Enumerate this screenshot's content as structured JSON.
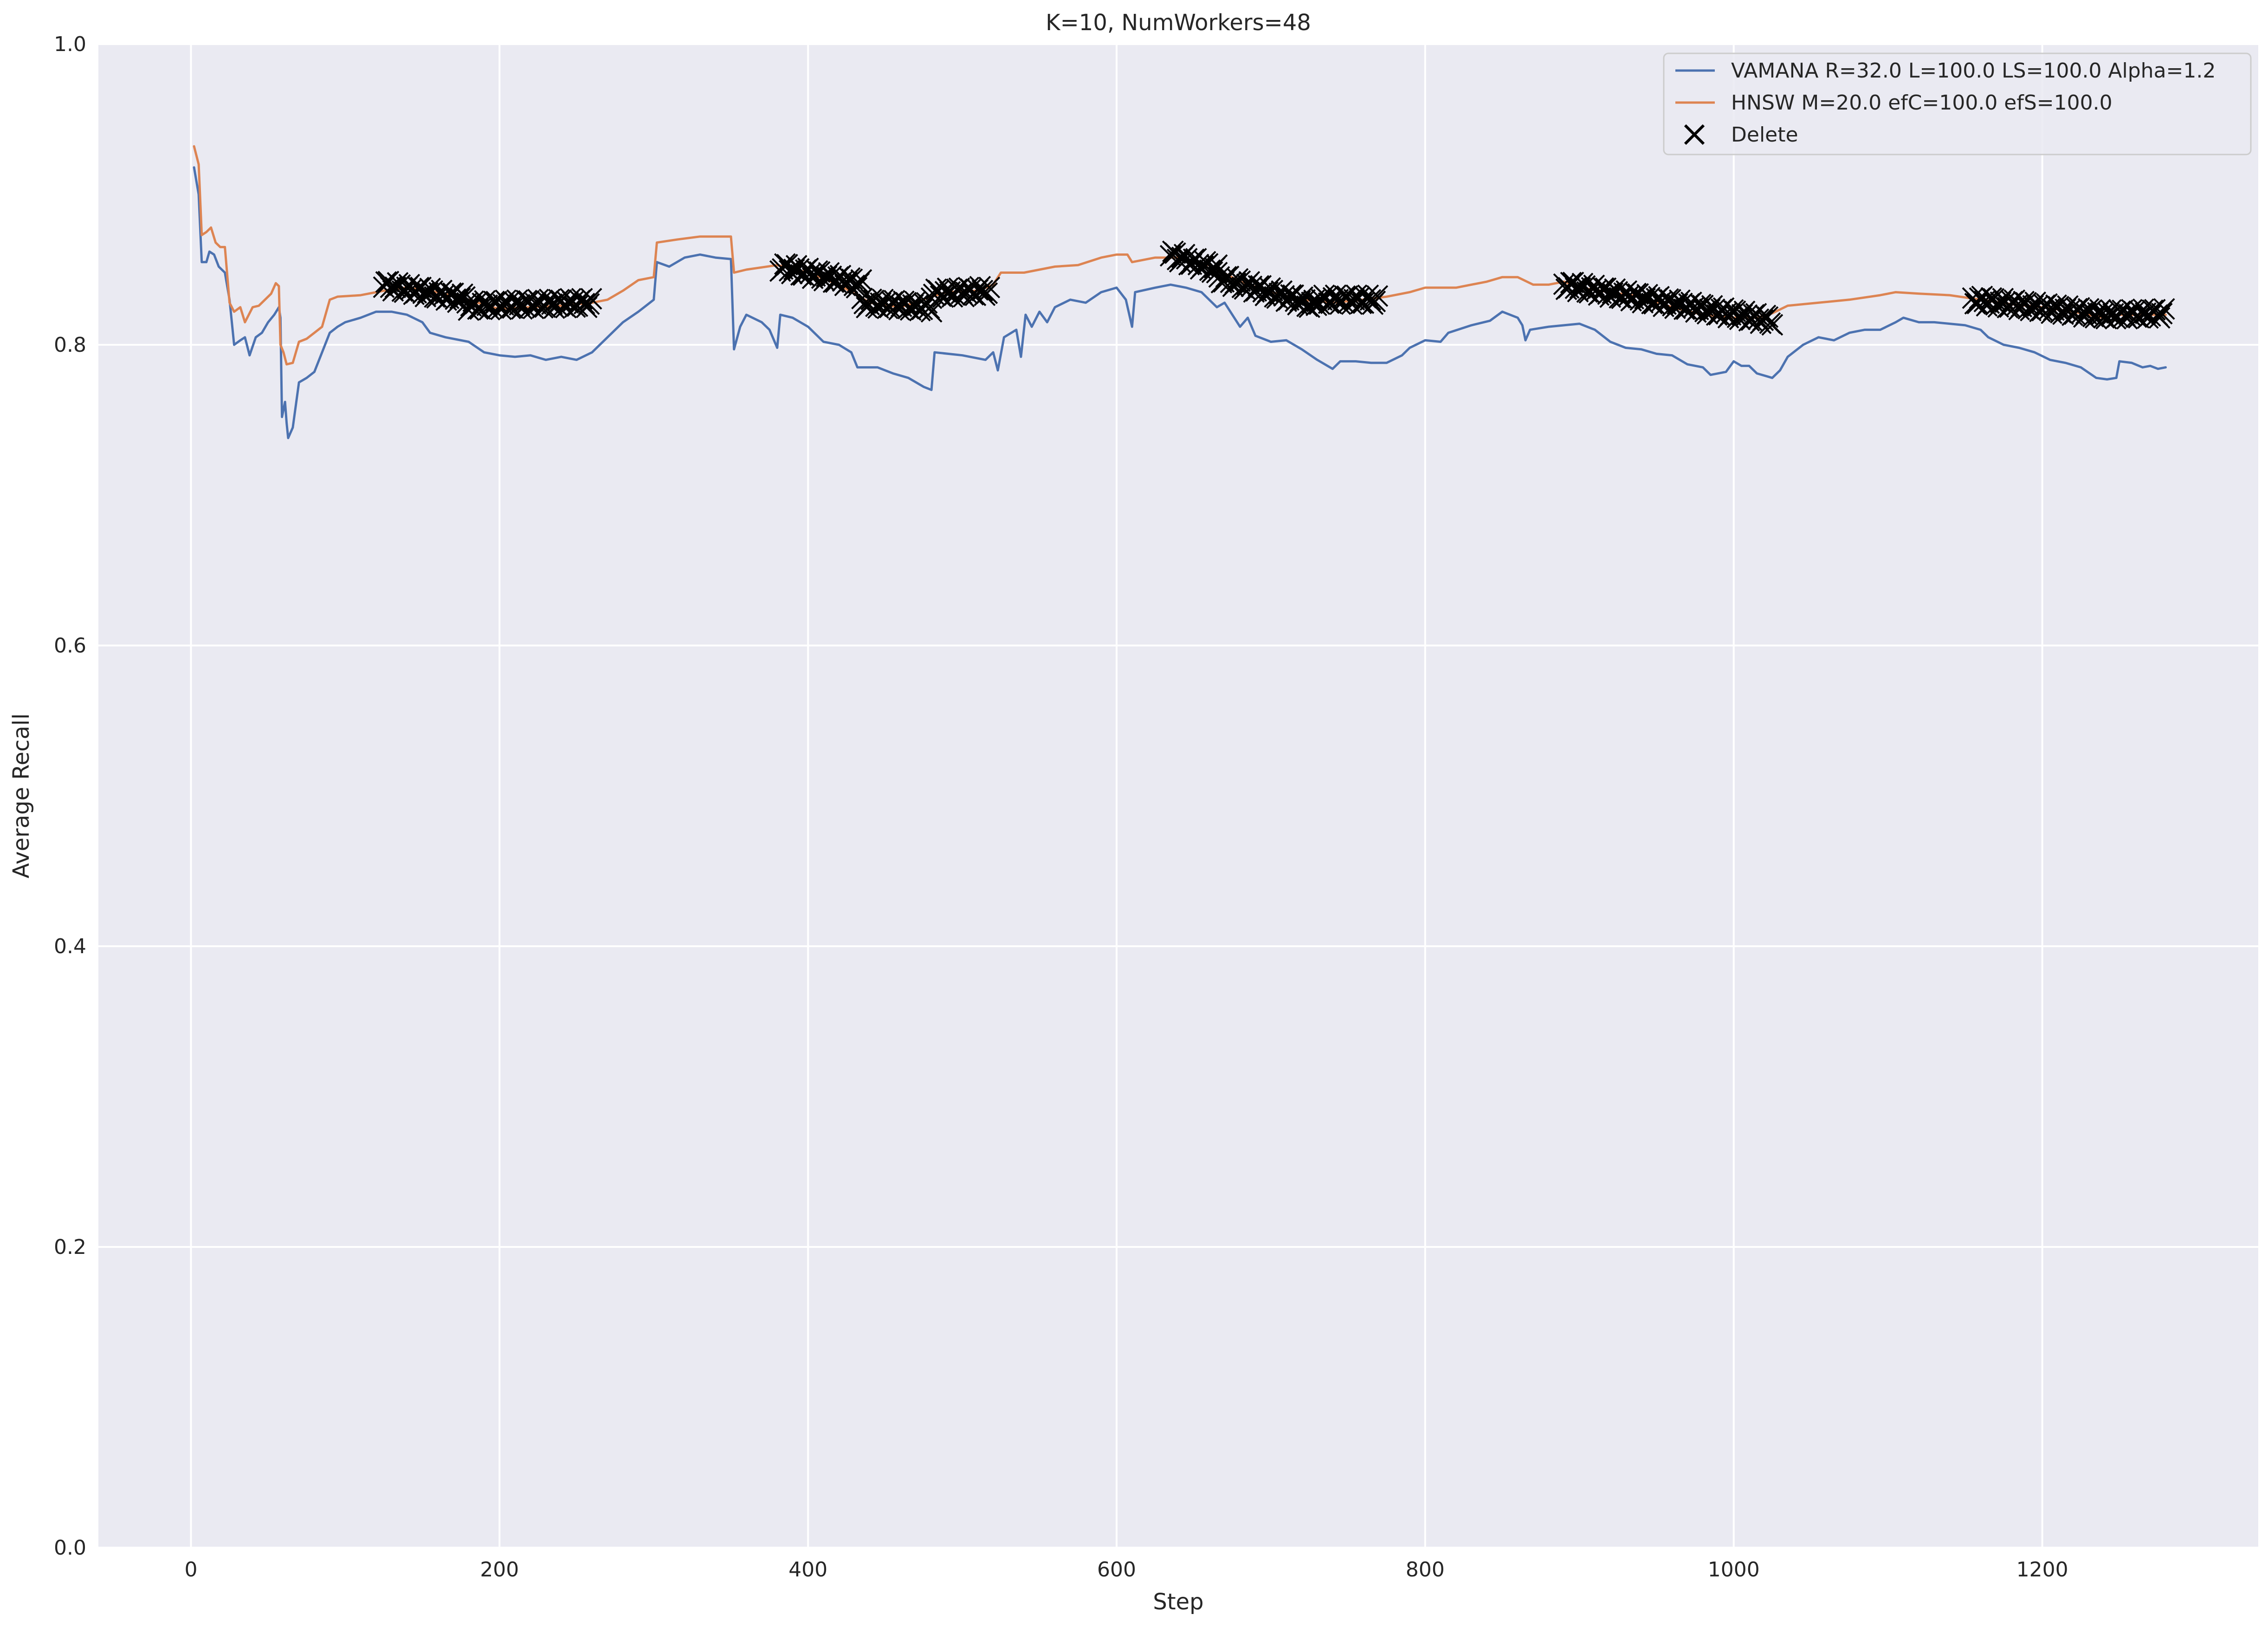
{
  "chart_data": {
    "type": "line",
    "title": "K=10, NumWorkers=48",
    "xlabel": "Step",
    "ylabel": "Average Recall",
    "xlim": [
      -60,
      1340
    ],
    "ylim": [
      0.0,
      1.0
    ],
    "xticks": [
      0,
      200,
      400,
      600,
      800,
      1000,
      1200
    ],
    "xtick_labels": [
      "0",
      "200",
      "400",
      "600",
      "800",
      "1000",
      "1200"
    ],
    "yticks": [
      0.0,
      0.2,
      0.4,
      0.6,
      0.8,
      1.0
    ],
    "ytick_labels": [
      "0.0",
      "0.2",
      "0.4",
      "0.6",
      "0.8",
      "1.0"
    ],
    "grid": true,
    "background": "#eaeaf2",
    "legend_position": "top-right",
    "legend": [
      {
        "label": "VAMANA R=32.0 L=100.0 LS=100.0 Alpha=1.2",
        "kind": "line",
        "color": "#4c72b0"
      },
      {
        "label": "HNSW M=20.0 efC=100.0 efS=100.0",
        "kind": "line",
        "color": "#dd8452"
      },
      {
        "label": "Delete",
        "kind": "marker",
        "color": "#000000"
      }
    ],
    "series": [
      {
        "name": "VAMANA R=32.0 L=100.0 LS=100.0 Alpha=1.2",
        "color": "#4c72b0",
        "points": [
          [
            2,
            0.918
          ],
          [
            5,
            0.9
          ],
          [
            7,
            0.855
          ],
          [
            10,
            0.855
          ],
          [
            12,
            0.862
          ],
          [
            15,
            0.86
          ],
          [
            18,
            0.852
          ],
          [
            22,
            0.848
          ],
          [
            25,
            0.83
          ],
          [
            28,
            0.8
          ],
          [
            32,
            0.803
          ],
          [
            35,
            0.805
          ],
          [
            38,
            0.793
          ],
          [
            42,
            0.805
          ],
          [
            46,
            0.808
          ],
          [
            50,
            0.815
          ],
          [
            54,
            0.82
          ],
          [
            57,
            0.825
          ],
          [
            58,
            0.818
          ],
          [
            59,
            0.752
          ],
          [
            61,
            0.762
          ],
          [
            62,
            0.748
          ],
          [
            63,
            0.738
          ],
          [
            66,
            0.745
          ],
          [
            70,
            0.775
          ],
          [
            75,
            0.778
          ],
          [
            80,
            0.782
          ],
          [
            85,
            0.795
          ],
          [
            90,
            0.808
          ],
          [
            95,
            0.812
          ],
          [
            100,
            0.815
          ],
          [
            110,
            0.818
          ],
          [
            120,
            0.822
          ],
          [
            130,
            0.822
          ],
          [
            140,
            0.82
          ],
          [
            150,
            0.815
          ],
          [
            155,
            0.808
          ],
          [
            165,
            0.805
          ],
          [
            180,
            0.802
          ],
          [
            190,
            0.795
          ],
          [
            200,
            0.793
          ],
          [
            210,
            0.792
          ],
          [
            220,
            0.793
          ],
          [
            230,
            0.79
          ],
          [
            240,
            0.792
          ],
          [
            250,
            0.79
          ],
          [
            260,
            0.795
          ],
          [
            270,
            0.805
          ],
          [
            280,
            0.815
          ],
          [
            290,
            0.822
          ],
          [
            300,
            0.83
          ],
          [
            302,
            0.855
          ],
          [
            310,
            0.852
          ],
          [
            320,
            0.858
          ],
          [
            330,
            0.86
          ],
          [
            340,
            0.858
          ],
          [
            350,
            0.857
          ],
          [
            352,
            0.797
          ],
          [
            356,
            0.812
          ],
          [
            360,
            0.82
          ],
          [
            370,
            0.815
          ],
          [
            375,
            0.81
          ],
          [
            380,
            0.798
          ],
          [
            382,
            0.82
          ],
          [
            390,
            0.818
          ],
          [
            400,
            0.812
          ],
          [
            410,
            0.802
          ],
          [
            420,
            0.8
          ],
          [
            428,
            0.795
          ],
          [
            432,
            0.785
          ],
          [
            445,
            0.785
          ],
          [
            455,
            0.781
          ],
          [
            465,
            0.778
          ],
          [
            475,
            0.772
          ],
          [
            480,
            0.77
          ],
          [
            482,
            0.795
          ],
          [
            500,
            0.793
          ],
          [
            515,
            0.79
          ],
          [
            520,
            0.795
          ],
          [
            523,
            0.783
          ],
          [
            527,
            0.805
          ],
          [
            535,
            0.81
          ],
          [
            538,
            0.792
          ],
          [
            541,
            0.82
          ],
          [
            545,
            0.812
          ],
          [
            550,
            0.822
          ],
          [
            555,
            0.815
          ],
          [
            560,
            0.825
          ],
          [
            570,
            0.83
          ],
          [
            580,
            0.828
          ],
          [
            590,
            0.835
          ],
          [
            600,
            0.838
          ],
          [
            606,
            0.83
          ],
          [
            610,
            0.812
          ],
          [
            612,
            0.835
          ],
          [
            625,
            0.838
          ],
          [
            635,
            0.84
          ],
          [
            645,
            0.838
          ],
          [
            655,
            0.835
          ],
          [
            665,
            0.825
          ],
          [
            670,
            0.828
          ],
          [
            680,
            0.812
          ],
          [
            685,
            0.818
          ],
          [
            690,
            0.806
          ],
          [
            700,
            0.802
          ],
          [
            710,
            0.803
          ],
          [
            720,
            0.797
          ],
          [
            730,
            0.79
          ],
          [
            740,
            0.784
          ],
          [
            745,
            0.789
          ],
          [
            755,
            0.789
          ],
          [
            765,
            0.788
          ],
          [
            775,
            0.788
          ],
          [
            785,
            0.793
          ],
          [
            790,
            0.798
          ],
          [
            800,
            0.803
          ],
          [
            810,
            0.802
          ],
          [
            815,
            0.808
          ],
          [
            830,
            0.813
          ],
          [
            842,
            0.816
          ],
          [
            850,
            0.822
          ],
          [
            860,
            0.818
          ],
          [
            863,
            0.813
          ],
          [
            865,
            0.803
          ],
          [
            868,
            0.81
          ],
          [
            880,
            0.812
          ],
          [
            890,
            0.813
          ],
          [
            900,
            0.814
          ],
          [
            910,
            0.81
          ],
          [
            920,
            0.802
          ],
          [
            930,
            0.798
          ],
          [
            940,
            0.797
          ],
          [
            950,
            0.794
          ],
          [
            960,
            0.793
          ],
          [
            970,
            0.787
          ],
          [
            980,
            0.785
          ],
          [
            985,
            0.78
          ],
          [
            995,
            0.782
          ],
          [
            1000,
            0.789
          ],
          [
            1005,
            0.786
          ],
          [
            1010,
            0.786
          ],
          [
            1015,
            0.781
          ],
          [
            1025,
            0.778
          ],
          [
            1030,
            0.783
          ],
          [
            1035,
            0.792
          ],
          [
            1045,
            0.8
          ],
          [
            1055,
            0.805
          ],
          [
            1065,
            0.803
          ],
          [
            1075,
            0.808
          ],
          [
            1085,
            0.81
          ],
          [
            1095,
            0.81
          ],
          [
            1105,
            0.815
          ],
          [
            1110,
            0.818
          ],
          [
            1120,
            0.815
          ],
          [
            1130,
            0.815
          ],
          [
            1140,
            0.814
          ],
          [
            1150,
            0.813
          ],
          [
            1160,
            0.81
          ],
          [
            1165,
            0.805
          ],
          [
            1175,
            0.8
          ],
          [
            1185,
            0.798
          ],
          [
            1195,
            0.795
          ],
          [
            1205,
            0.79
          ],
          [
            1215,
            0.788
          ],
          [
            1225,
            0.785
          ],
          [
            1235,
            0.778
          ],
          [
            1242,
            0.777
          ],
          [
            1248,
            0.778
          ],
          [
            1250,
            0.789
          ],
          [
            1258,
            0.788
          ],
          [
            1265,
            0.785
          ],
          [
            1270,
            0.786
          ],
          [
            1275,
            0.784
          ],
          [
            1280,
            0.785
          ]
        ]
      },
      {
        "name": "HNSW M=20.0 efC=100.0 efS=100.0",
        "color": "#dd8452",
        "points": [
          [
            2,
            0.932
          ],
          [
            5,
            0.92
          ],
          [
            7,
            0.873
          ],
          [
            10,
            0.875
          ],
          [
            13,
            0.878
          ],
          [
            16,
            0.868
          ],
          [
            19,
            0.865
          ],
          [
            22,
            0.865
          ],
          [
            25,
            0.828
          ],
          [
            28,
            0.822
          ],
          [
            32,
            0.825
          ],
          [
            35,
            0.815
          ],
          [
            40,
            0.825
          ],
          [
            44,
            0.826
          ],
          [
            48,
            0.83
          ],
          [
            52,
            0.834
          ],
          [
            55,
            0.841
          ],
          [
            57,
            0.839
          ],
          [
            58,
            0.8
          ],
          [
            60,
            0.795
          ],
          [
            62,
            0.787
          ],
          [
            66,
            0.788
          ],
          [
            70,
            0.802
          ],
          [
            75,
            0.804
          ],
          [
            80,
            0.808
          ],
          [
            85,
            0.812
          ],
          [
            90,
            0.83
          ],
          [
            95,
            0.832
          ],
          [
            110,
            0.833
          ],
          [
            125,
            0.836
          ],
          [
            140,
            0.838
          ],
          [
            160,
            0.835
          ],
          [
            180,
            0.83
          ],
          [
            195,
            0.825
          ],
          [
            200,
            0.824
          ],
          [
            220,
            0.825
          ],
          [
            240,
            0.826
          ],
          [
            260,
            0.828
          ],
          [
            270,
            0.83
          ],
          [
            280,
            0.836
          ],
          [
            290,
            0.843
          ],
          [
            300,
            0.845
          ],
          [
            302,
            0.868
          ],
          [
            315,
            0.87
          ],
          [
            330,
            0.872
          ],
          [
            350,
            0.872
          ],
          [
            352,
            0.848
          ],
          [
            360,
            0.85
          ],
          [
            380,
            0.853
          ],
          [
            400,
            0.848
          ],
          [
            420,
            0.84
          ],
          [
            440,
            0.828
          ],
          [
            460,
            0.825
          ],
          [
            480,
            0.832
          ],
          [
            490,
            0.835
          ],
          [
            510,
            0.836
          ],
          [
            520,
            0.84
          ],
          [
            525,
            0.848
          ],
          [
            540,
            0.848
          ],
          [
            560,
            0.852
          ],
          [
            575,
            0.853
          ],
          [
            590,
            0.858
          ],
          [
            600,
            0.86
          ],
          [
            607,
            0.86
          ],
          [
            610,
            0.855
          ],
          [
            625,
            0.858
          ],
          [
            640,
            0.858
          ],
          [
            660,
            0.853
          ],
          [
            680,
            0.842
          ],
          [
            700,
            0.835
          ],
          [
            720,
            0.83
          ],
          [
            740,
            0.828
          ],
          [
            760,
            0.83
          ],
          [
            775,
            0.832
          ],
          [
            790,
            0.835
          ],
          [
            800,
            0.838
          ],
          [
            820,
            0.838
          ],
          [
            840,
            0.842
          ],
          [
            850,
            0.845
          ],
          [
            860,
            0.845
          ],
          [
            870,
            0.84
          ],
          [
            880,
            0.84
          ],
          [
            890,
            0.842
          ],
          [
            900,
            0.838
          ],
          [
            920,
            0.835
          ],
          [
            940,
            0.832
          ],
          [
            960,
            0.825
          ],
          [
            980,
            0.82
          ],
          [
            1000,
            0.818
          ],
          [
            1015,
            0.818
          ],
          [
            1025,
            0.821
          ],
          [
            1035,
            0.826
          ],
          [
            1055,
            0.828
          ],
          [
            1075,
            0.83
          ],
          [
            1095,
            0.833
          ],
          [
            1105,
            0.835
          ],
          [
            1120,
            0.834
          ],
          [
            1140,
            0.833
          ],
          [
            1160,
            0.83
          ],
          [
            1180,
            0.827
          ],
          [
            1200,
            0.825
          ],
          [
            1220,
            0.822
          ],
          [
            1240,
            0.818
          ],
          [
            1250,
            0.82
          ],
          [
            1260,
            0.82
          ],
          [
            1280,
            0.82
          ]
        ]
      }
    ],
    "delete_markers": {
      "name": "Delete",
      "color": "#000000",
      "ranges": [
        {
          "x": [
            125,
            180
          ],
          "y": [
            0.84,
            0.83
          ]
        },
        {
          "x": [
            180,
            260
          ],
          "y": [
            0.826,
            0.828
          ]
        },
        {
          "x": [
            382,
            435
          ],
          "y": [
            0.852,
            0.84
          ]
        },
        {
          "x": [
            435,
            480
          ],
          "y": [
            0.828,
            0.825
          ]
        },
        {
          "x": [
            480,
            518
          ],
          "y": [
            0.834,
            0.836
          ]
        },
        {
          "x": [
            635,
            665
          ],
          "y": [
            0.86,
            0.85
          ]
        },
        {
          "x": [
            665,
            730
          ],
          "y": [
            0.845,
            0.826
          ]
        },
        {
          "x": [
            730,
            770
          ],
          "y": [
            0.83,
            0.83
          ]
        },
        {
          "x": [
            890,
            1025
          ],
          "y": [
            0.84,
            0.816
          ]
        },
        {
          "x": [
            1155,
            1240
          ],
          "y": [
            0.83,
            0.82
          ]
        },
        {
          "x": [
            1240,
            1280
          ],
          "y": [
            0.82,
            0.821
          ]
        }
      ]
    }
  }
}
